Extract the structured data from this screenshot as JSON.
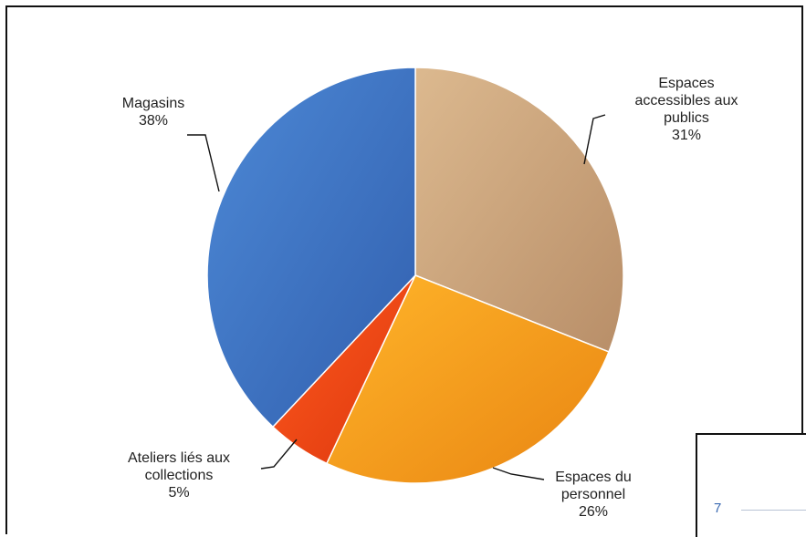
{
  "chart_data": {
    "type": "pie",
    "start": "12 o'clock",
    "direction": "clockwise",
    "slices": [
      {
        "label_lines": [
          "Espaces",
          "accessibles aux",
          "publics"
        ],
        "value": 31,
        "value_label": "31%",
        "color": "#c9a47d"
      },
      {
        "label_lines": [
          "Espaces du",
          "personnel"
        ],
        "value": 26,
        "value_label": "26%",
        "color": "#f59d16"
      },
      {
        "label_lines": [
          "Ateliers liés aux",
          "collections"
        ],
        "value": 5,
        "value_label": "5%",
        "color": "#ef4a14"
      },
      {
        "label_lines": [
          "Magasins"
        ],
        "value": 38,
        "value_label": "38%",
        "color": "#3e78c8"
      }
    ]
  },
  "footer": {
    "page_number": "7"
  }
}
